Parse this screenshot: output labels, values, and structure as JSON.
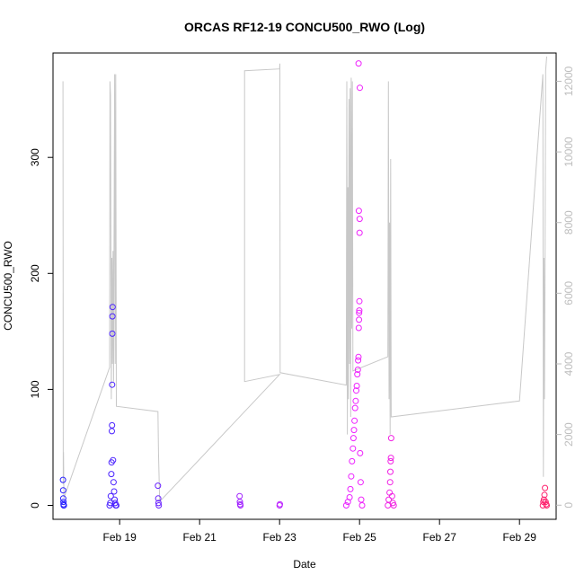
{
  "chart_data": {
    "type": "scatter",
    "title": "ORCAS RF12-19 CONCU500_RWO (Log)",
    "xlabel": "Date",
    "ylabel": "CONCU500_RWO",
    "xlim": [
      "2016-02-17 08:00",
      "2016-02-29 22:00"
    ],
    "ylim": [
      -12,
      390
    ],
    "ylim_right": [
      -400,
      12800
    ],
    "x_ticks": [
      {
        "date": "2016-02-19",
        "label": "Feb 19"
      },
      {
        "date": "2016-02-21",
        "label": "Feb 21"
      },
      {
        "date": "2016-02-23",
        "label": "Feb 23"
      },
      {
        "date": "2016-02-25",
        "label": "Feb 25"
      },
      {
        "date": "2016-02-27",
        "label": "Feb 27"
      },
      {
        "date": "2016-02-29",
        "label": "Feb 29"
      }
    ],
    "y_ticks": [
      0,
      100,
      200,
      300
    ],
    "y_ticks_right": [
      0,
      2000,
      4000,
      6000,
      8000,
      10000,
      12000
    ],
    "colors": {
      "line": "#c8c8c8",
      "gradient_start": "#2222ff",
      "gradient_mid": "#ee22ff",
      "gradient_end": "#ff2266",
      "right_axis": "#bdbdbd"
    },
    "line_series": [
      [
        "2016-02-17 14:00",
        12000
      ],
      [
        "2016-02-17 14:10",
        600
      ],
      [
        "2016-02-17 14:20",
        1500
      ],
      [
        "2016-02-17 14:30",
        200
      ],
      [
        "2016-02-18 18:00",
        3900
      ],
      [
        "2016-02-18 18:10",
        12000
      ],
      [
        "2016-02-18 18:20",
        11800
      ],
      [
        "2016-02-18 18:30",
        11600
      ],
      [
        "2016-02-18 19:00",
        3000
      ],
      [
        "2016-02-18 19:20",
        7000
      ],
      [
        "2016-02-18 19:40",
        4000
      ],
      [
        "2016-02-18 20:00",
        7200
      ],
      [
        "2016-02-18 20:20",
        3500
      ],
      [
        "2016-02-18 20:40",
        8000
      ],
      [
        "2016-02-18 21:00",
        12200
      ],
      [
        "2016-02-18 21:20",
        4000
      ],
      [
        "2016-02-18 21:40",
        12200
      ],
      [
        "2016-02-18 22:00",
        2800
      ],
      [
        "2016-02-19 23:00",
        2650
      ],
      [
        "2016-02-19 23:20",
        1500
      ],
      [
        "2016-02-20 00:00",
        100
      ],
      [
        "2016-02-23 00:00",
        3700
      ],
      [
        "2016-02-22 03:00",
        3500
      ],
      [
        "2016-02-22 03:00",
        12300
      ],
      [
        "2016-02-23 00:00",
        12350
      ],
      [
        "2016-02-23 00:10",
        12500
      ],
      [
        "2016-02-23 00:20",
        3750
      ],
      [
        "2016-02-24 16:00",
        3400
      ],
      [
        "2016-02-24 16:20",
        12000
      ],
      [
        "2016-02-24 16:40",
        2000
      ],
      [
        "2016-02-24 17:00",
        9000
      ],
      [
        "2016-02-24 17:20",
        3000
      ],
      [
        "2016-02-24 17:40",
        11500
      ],
      [
        "2016-02-24 18:00",
        4000
      ],
      [
        "2016-02-24 18:20",
        11800
      ],
      [
        "2016-02-24 18:40",
        2500
      ],
      [
        "2016-02-24 19:00",
        12100
      ],
      [
        "2016-02-24 19:20",
        5000
      ],
      [
        "2016-02-24 19:40",
        12000
      ],
      [
        "2016-02-24 20:00",
        3800
      ],
      [
        "2016-02-25 17:00",
        4200
      ],
      [
        "2016-02-25 17:20",
        12000
      ],
      [
        "2016-02-25 17:40",
        3000
      ],
      [
        "2016-02-25 18:00",
        8000
      ],
      [
        "2016-02-25 18:20",
        2000
      ],
      [
        "2016-02-25 18:40",
        9800
      ],
      [
        "2016-02-25 19:00",
        2500
      ],
      [
        "2016-02-29 00:00",
        2950
      ],
      [
        "2016-02-29 14:00",
        12200
      ],
      [
        "2016-02-29 14:20",
        800
      ],
      [
        "2016-02-29 14:40",
        7000
      ],
      [
        "2016-02-29 15:00",
        3000
      ],
      [
        "2016-02-29 15:20",
        6300
      ],
      [
        "2016-02-29 15:40",
        12300
      ],
      [
        "2016-02-29 16:00",
        12500
      ],
      [
        "2016-02-29 16:20",
        12700
      ]
    ],
    "marker_series": [
      [
        "2016-02-17 14:00",
        22
      ],
      [
        "2016-02-17 14:05",
        13
      ],
      [
        "2016-02-17 14:10",
        6
      ],
      [
        "2016-02-17 14:15",
        3
      ],
      [
        "2016-02-17 14:20",
        1
      ],
      [
        "2016-02-17 14:25",
        0
      ],
      [
        "2016-02-17 14:30",
        0
      ],
      [
        "2016-02-18 18:00",
        0
      ],
      [
        "2016-02-18 18:20",
        2
      ],
      [
        "2016-02-18 18:40",
        8
      ],
      [
        "2016-02-18 19:00",
        27
      ],
      [
        "2016-02-18 19:10",
        37
      ],
      [
        "2016-02-18 19:20",
        64
      ],
      [
        "2016-02-18 19:25",
        69
      ],
      [
        "2016-02-18 19:30",
        104
      ],
      [
        "2016-02-18 19:35",
        148
      ],
      [
        "2016-02-18 19:40",
        163
      ],
      [
        "2016-02-18 19:45",
        171
      ],
      [
        "2016-02-18 20:00",
        39
      ],
      [
        "2016-02-18 20:20",
        20
      ],
      [
        "2016-02-18 20:40",
        12
      ],
      [
        "2016-02-18 21:00",
        5
      ],
      [
        "2016-02-18 21:20",
        2
      ],
      [
        "2016-02-18 21:40",
        0
      ],
      [
        "2016-02-18 22:00",
        0
      ],
      [
        "2016-02-19 23:00",
        17
      ],
      [
        "2016-02-19 23:10",
        6
      ],
      [
        "2016-02-19 23:20",
        2
      ],
      [
        "2016-02-19 23:30",
        0
      ],
      [
        "2016-02-22 00:00",
        8
      ],
      [
        "2016-02-22 00:10",
        3
      ],
      [
        "2016-02-22 00:20",
        1
      ],
      [
        "2016-02-22 00:30",
        0
      ],
      [
        "2016-02-23 00:00",
        0
      ],
      [
        "2016-02-23 00:10",
        1
      ],
      [
        "2016-02-24 16:00",
        0
      ],
      [
        "2016-02-24 17:00",
        3
      ],
      [
        "2016-02-24 18:00",
        7
      ],
      [
        "2016-02-24 18:30",
        14
      ],
      [
        "2016-02-24 19:00",
        25
      ],
      [
        "2016-02-24 19:30",
        38
      ],
      [
        "2016-02-24 20:00",
        49
      ],
      [
        "2016-02-24 20:20",
        58
      ],
      [
        "2016-02-24 20:40",
        65
      ],
      [
        "2016-02-24 21:00",
        73
      ],
      [
        "2016-02-24 21:20",
        84
      ],
      [
        "2016-02-24 21:40",
        90
      ],
      [
        "2016-02-24 22:00",
        99
      ],
      [
        "2016-02-24 22:20",
        103
      ],
      [
        "2016-02-24 22:40",
        113
      ],
      [
        "2016-02-24 23:00",
        117
      ],
      [
        "2016-02-24 23:10",
        125
      ],
      [
        "2016-02-24 23:20",
        128
      ],
      [
        "2016-02-24 23:30",
        153
      ],
      [
        "2016-02-24 23:40",
        160
      ],
      [
        "2016-02-24 23:45",
        166
      ],
      [
        "2016-02-24 23:50",
        168
      ],
      [
        "2016-02-24 23:55",
        176
      ],
      [
        "2016-02-25 00:00",
        235
      ],
      [
        "2016-02-25 00:05",
        247
      ],
      [
        "2016-02-24 23:35",
        254
      ],
      [
        "2016-02-24 23:25",
        381
      ],
      [
        "2016-02-25 00:10",
        360
      ],
      [
        "2016-02-25 00:20",
        45
      ],
      [
        "2016-02-25 00:40",
        20
      ],
      [
        "2016-02-25 01:00",
        5
      ],
      [
        "2016-02-25 01:30",
        0
      ],
      [
        "2016-02-25 17:00",
        0
      ],
      [
        "2016-02-25 17:30",
        5
      ],
      [
        "2016-02-25 18:00",
        11
      ],
      [
        "2016-02-25 18:20",
        20
      ],
      [
        "2016-02-25 18:30",
        29
      ],
      [
        "2016-02-25 18:40",
        38
      ],
      [
        "2016-02-25 18:50",
        41
      ],
      [
        "2016-02-25 19:00",
        58
      ],
      [
        "2016-02-25 19:30",
        8
      ],
      [
        "2016-02-25 20:00",
        2
      ],
      [
        "2016-02-25 20:30",
        0
      ],
      [
        "2016-02-29 14:00",
        0
      ],
      [
        "2016-02-29 14:20",
        3
      ],
      [
        "2016-02-29 14:40",
        5
      ],
      [
        "2016-02-29 15:00",
        9
      ],
      [
        "2016-02-29 15:20",
        15
      ],
      [
        "2016-02-29 15:40",
        3
      ],
      [
        "2016-02-29 16:00",
        1
      ],
      [
        "2016-02-29 16:20",
        0
      ]
    ]
  }
}
